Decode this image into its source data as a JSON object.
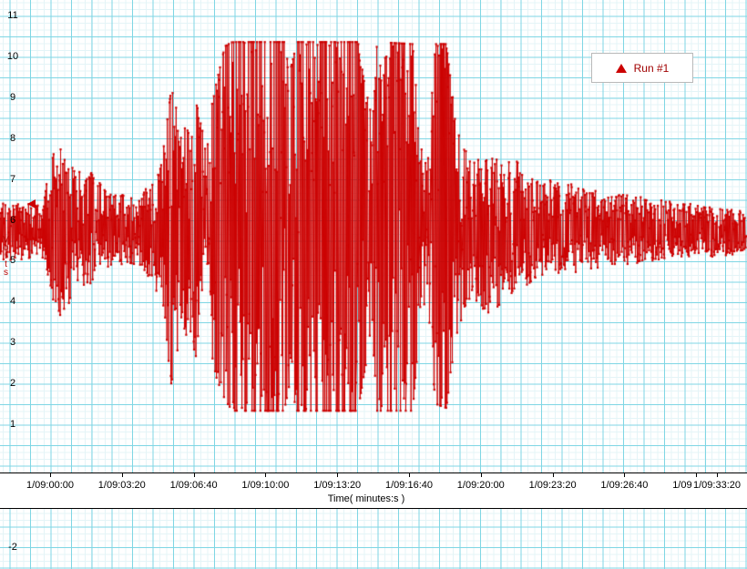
{
  "legend": {
    "label": "Run #1",
    "marker": "triangle",
    "color": "#cc0000"
  },
  "channel": {
    "marker_value": 6.4,
    "color": "#cc0000"
  },
  "chart_data": {
    "type": "line",
    "title": "",
    "xlabel": "Time( minutes:s )",
    "ylabel": "Volts",
    "series": [
      {
        "name": "Run #1",
        "color": "#cc0000",
        "marker": "dot"
      }
    ],
    "x_ticks": [
      "1/09:00:00",
      "1/09:03:20",
      "1/09:06:40",
      "1/09:10:00",
      "1/09:13:20",
      "1/09:16:40",
      "1/09:20:00",
      "1/09:23:20",
      "1/09:26:40",
      "1/09:30:00",
      "1/09:33:20"
    ],
    "x_tick_interval_s": 200,
    "y_ticks": [
      "11",
      "10",
      "9",
      "8",
      "7",
      "6",
      "5",
      "4",
      "3",
      "2",
      "1",
      "-2"
    ],
    "ylim": [
      -2,
      11
    ],
    "baseline_v": 5.7,
    "clip_v": [
      1.33,
      10.35
    ],
    "grid": {
      "minor_color": "#e4f4f7",
      "major_color": "#7fd6e4",
      "on": true
    },
    "legend_position": "top-right",
    "envelope_x_lo_hi": [
      [
        0,
        5.0,
        6.5
      ],
      [
        45,
        5.0,
        6.4
      ],
      [
        55,
        4.4,
        7.2
      ],
      [
        62,
        3.5,
        8.0
      ],
      [
        72,
        3.6,
        7.4
      ],
      [
        85,
        4.4,
        7.2
      ],
      [
        95,
        4.3,
        7.3
      ],
      [
        110,
        4.7,
        6.9
      ],
      [
        125,
        4.9,
        6.7
      ],
      [
        150,
        4.9,
        6.6
      ],
      [
        166,
        4.5,
        7.0
      ],
      [
        178,
        3.9,
        7.5
      ],
      [
        188,
        2.0,
        9.2
      ],
      [
        197,
        2.9,
        8.6
      ],
      [
        207,
        3.2,
        8.3
      ],
      [
        216,
        2.6,
        8.8
      ],
      [
        226,
        3.4,
        8.1
      ],
      [
        238,
        2.1,
        9.4
      ],
      [
        247,
        1.6,
        10.25
      ],
      [
        255,
        1.33,
        10.35
      ],
      [
        312,
        1.33,
        10.35
      ],
      [
        318,
        2.0,
        9.6
      ],
      [
        326,
        1.33,
        10.35
      ],
      [
        393,
        1.33,
        10.35
      ],
      [
        401,
        2.4,
        9.2
      ],
      [
        408,
        3.0,
        8.6
      ],
      [
        414,
        1.33,
        10.35
      ],
      [
        453,
        1.33,
        10.3
      ],
      [
        460,
        3.2,
        8.3
      ],
      [
        470,
        3.7,
        7.7
      ],
      [
        478,
        1.5,
        10.3
      ],
      [
        490,
        1.4,
        10.3
      ],
      [
        497,
        2.6,
        9.0
      ],
      [
        505,
        3.5,
        7.9
      ],
      [
        520,
        3.8,
        7.5
      ],
      [
        540,
        3.5,
        7.6
      ],
      [
        553,
        4.1,
        7.3
      ],
      [
        566,
        4.2,
        7.6
      ],
      [
        580,
        4.4,
        7.1
      ],
      [
        600,
        4.6,
        7.0
      ],
      [
        625,
        4.7,
        6.9
      ],
      [
        655,
        4.8,
        6.7
      ],
      [
        690,
        4.9,
        6.6
      ],
      [
        720,
        5.0,
        6.5
      ],
      [
        755,
        5.1,
        6.4
      ],
      [
        790,
        5.1,
        6.3
      ],
      [
        820,
        5.2,
        6.2
      ]
    ]
  }
}
